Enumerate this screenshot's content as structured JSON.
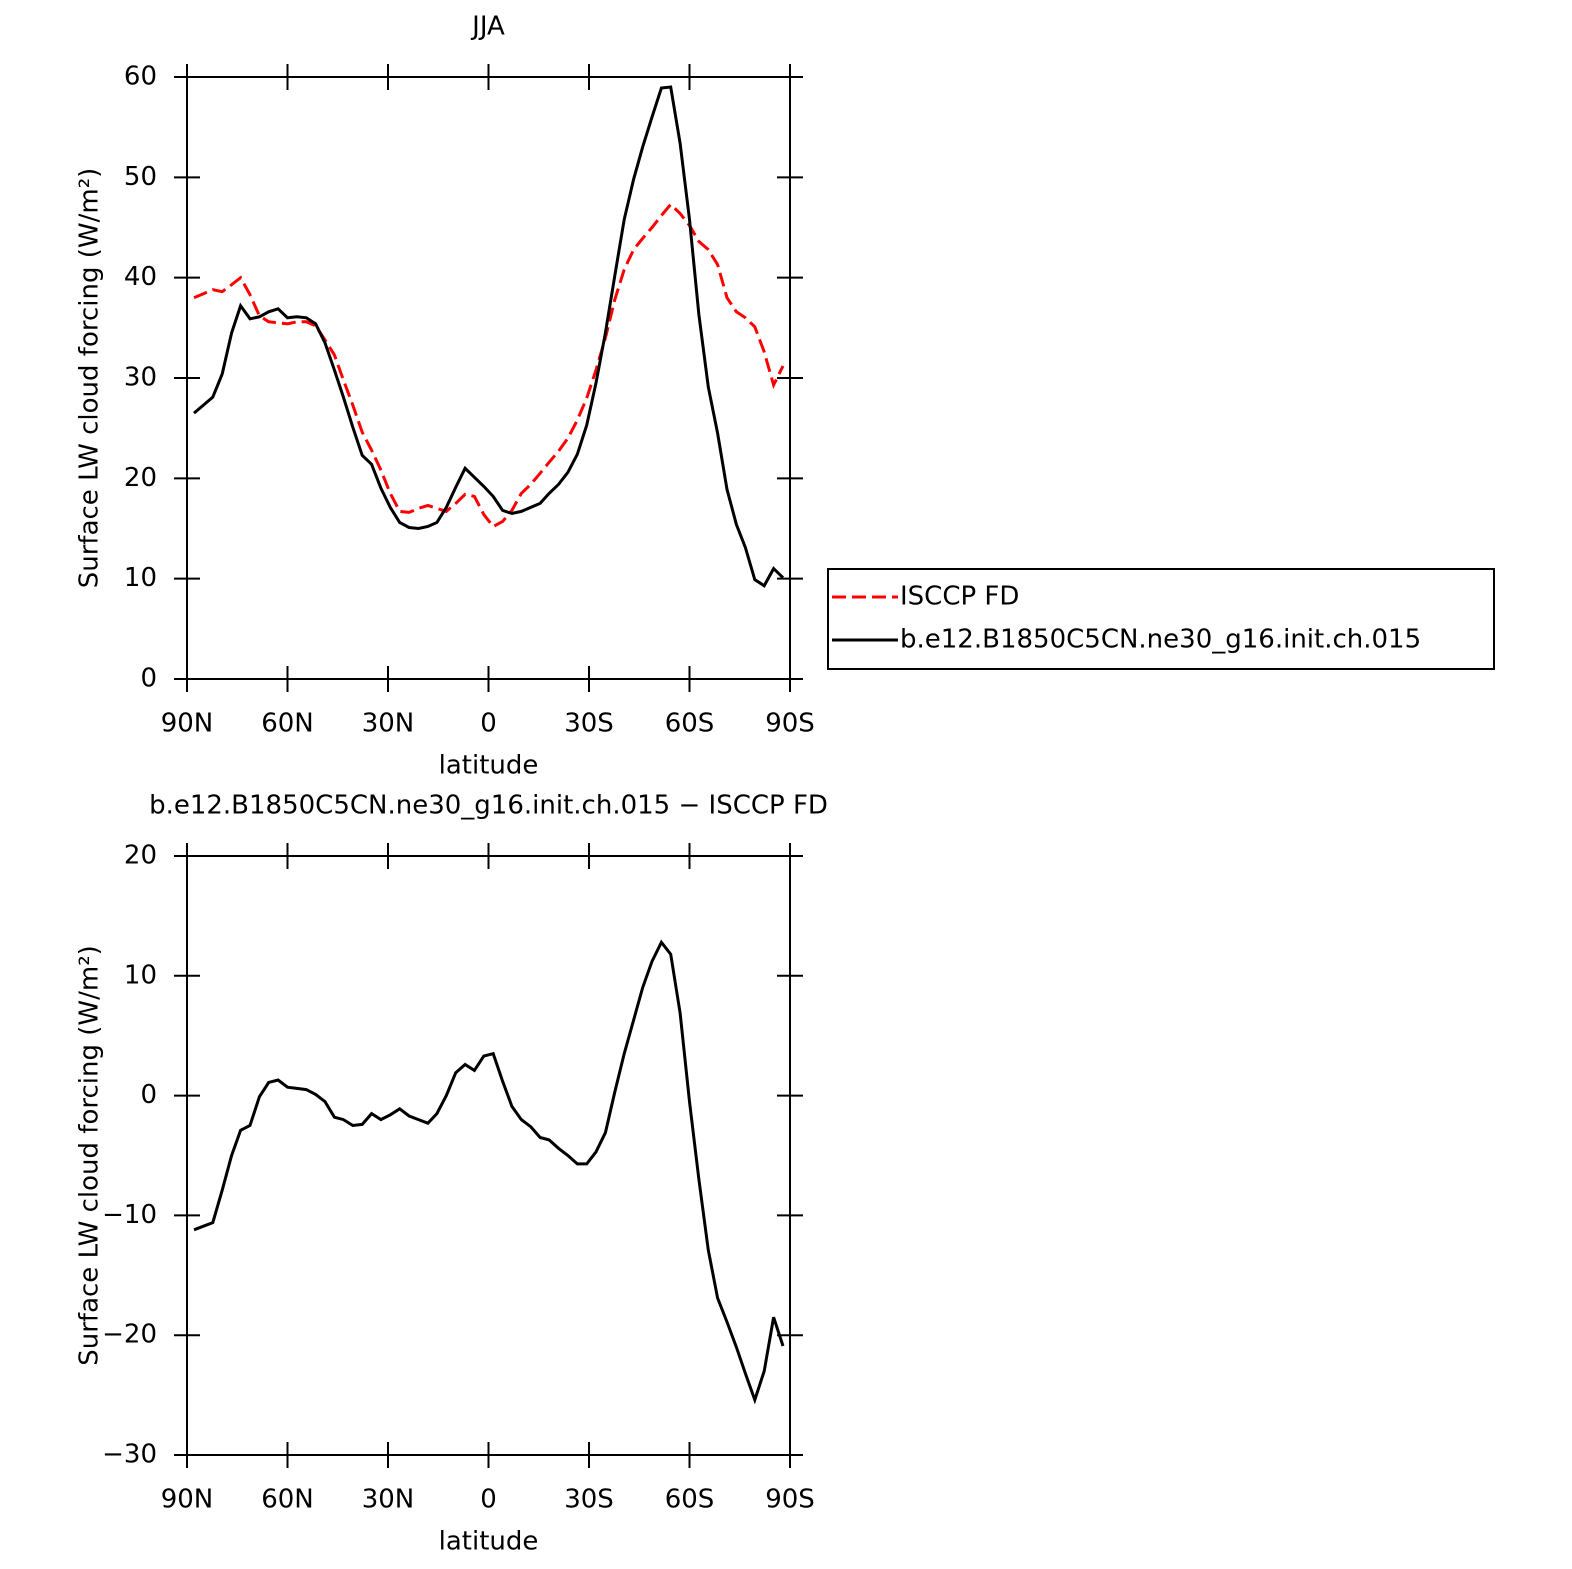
{
  "chart_data": [
    {
      "type": "line",
      "title": "JJA",
      "x_label": "latitude",
      "y_label": "Surface LW cloud forcing (W/m²)",
      "x": [
        87.9,
        85.1,
        82.3,
        79.5,
        76.7,
        74,
        71.2,
        68.4,
        65.6,
        62.8,
        60,
        57.2,
        54.4,
        51.6,
        48.8,
        46,
        43.3,
        40.5,
        37.7,
        34.9,
        32.1,
        29.3,
        26.5,
        23.7,
        20.9,
        18.1,
        15.4,
        12.6,
        9.8,
        7,
        4.2,
        1.4,
        -1.4,
        -4.2,
        -7,
        -9.8,
        -12.6,
        -15.4,
        -18.1,
        -20.9,
        -23.7,
        -26.5,
        -29.3,
        -32.1,
        -34.9,
        -37.7,
        -40.5,
        -43.3,
        -46,
        -48.8,
        -51.6,
        -54.4,
        -57.2,
        -60,
        -62.8,
        -65.6,
        -68.4,
        -71.2,
        -74,
        -76.7,
        -79.5,
        -82.3,
        -85.1,
        -87.9
      ],
      "series": [
        {
          "name": "ISCCP FD",
          "color": "#ff0000",
          "line_style": "dashed",
          "values": [
            38.0,
            38.4,
            38.8,
            38.6,
            39.3,
            40.0,
            38.3,
            36.2,
            35.6,
            35.5,
            35.4,
            35.6,
            35.6,
            35.2,
            33.8,
            32.3,
            29.8,
            27.3,
            24.6,
            22.8,
            20.8,
            18.5,
            16.7,
            16.6,
            17.0,
            17.3,
            17.0,
            16.7,
            17.5,
            18.4,
            18.2,
            16.4,
            15.2,
            15.7,
            16.8,
            18.5,
            19.4,
            20.5,
            21.6,
            22.7,
            24.0,
            25.8,
            28.0,
            30.8,
            34.0,
            37.8,
            40.8,
            42.8,
            43.9,
            45.0,
            46.2,
            47.3,
            46.4,
            45.2,
            43.6,
            42.8,
            41.3,
            38.0,
            36.6,
            36.0,
            35.1,
            32.6,
            29.3,
            31.2
          ]
        },
        {
          "name": "b.e12.B1850C5CN.ne30_g16.init.ch.015",
          "color": "#000000",
          "line_style": "solid",
          "values": [
            26.5,
            27.3,
            28.1,
            30.4,
            34.5,
            37.2,
            35.9,
            36.1,
            36.6,
            36.9,
            36.0,
            36.1,
            36.0,
            35.4,
            33.5,
            30.8,
            28.1,
            25.1,
            22.3,
            21.4,
            19.0,
            17.1,
            15.6,
            15.1,
            15.0,
            15.2,
            15.6,
            17.1,
            19.1,
            21.0,
            20.1,
            19.2,
            18.2,
            16.8,
            16.5,
            16.7,
            17.1,
            17.5,
            18.5,
            19.4,
            20.6,
            22.4,
            25.3,
            29.5,
            34.5,
            40.2,
            45.8,
            49.8,
            53.0,
            56.0,
            58.9,
            59.0,
            53.4,
            45.8,
            36.3,
            29.1,
            24.5,
            18.9,
            15.4,
            13.1,
            9.9,
            9.3,
            11.0,
            10.1
          ]
        }
      ],
      "xlim": [
        90,
        -90
      ],
      "xticks": [
        {
          "value": 90,
          "label": "90N"
        },
        {
          "value": 60,
          "label": "60N"
        },
        {
          "value": 30,
          "label": "30N"
        },
        0,
        {
          "value": -30,
          "label": "30S"
        },
        {
          "value": -60,
          "label": "60S"
        },
        {
          "value": -90,
          "label": "90S"
        }
      ],
      "ylim": [
        0,
        60
      ],
      "yticks": [
        0,
        10,
        20,
        30,
        40,
        50,
        60
      ],
      "legend": "outside-right"
    },
    {
      "type": "line",
      "title": "b.e12.B1850C5CN.ne30_g16.init.ch.015 − ISCCP FD",
      "x_label": "latitude",
      "y_label": "Surface LW cloud forcing (W/m²)",
      "x": [
        87.9,
        85.1,
        82.3,
        79.5,
        76.7,
        74,
        71.2,
        68.4,
        65.6,
        62.8,
        60,
        57.2,
        54.4,
        51.6,
        48.8,
        46,
        43.3,
        40.5,
        37.7,
        34.9,
        32.1,
        29.3,
        26.5,
        23.7,
        20.9,
        18.1,
        15.4,
        12.6,
        9.8,
        7,
        4.2,
        1.4,
        -1.4,
        -4.2,
        -7,
        -9.8,
        -12.6,
        -15.4,
        -18.1,
        -20.9,
        -23.7,
        -26.5,
        -29.3,
        -32.1,
        -34.9,
        -37.7,
        -40.5,
        -43.3,
        -46,
        -48.8,
        -51.6,
        -54.4,
        -57.2,
        -60,
        -62.8,
        -65.6,
        -68.4,
        -71.2,
        -74,
        -76.7,
        -79.5,
        -82.3,
        -85.1,
        -87.9
      ],
      "series": [
        {
          "color": "#000000",
          "line_style": "solid",
          "values": [
            -11.2,
            -10.9,
            -10.6,
            -7.9,
            -5.0,
            -2.9,
            -2.5,
            -0.1,
            1.1,
            1.3,
            0.7,
            0.6,
            0.5,
            0.1,
            -0.5,
            -1.8,
            -2.0,
            -2.5,
            -2.4,
            -1.5,
            -2.0,
            -1.6,
            -1.1,
            -1.7,
            -2.0,
            -2.3,
            -1.5,
            0,
            1.9,
            2.6,
            2.1,
            3.3,
            3.5,
            1.2,
            -0.9,
            -2.0,
            -2.6,
            -3.5,
            -3.7,
            -4.4,
            -5.0,
            -5.7,
            -5.7,
            -4.7,
            -3.1,
            0.3,
            3.5,
            6.3,
            9.0,
            11.2,
            12.8,
            11.8,
            6.9,
            -0.5,
            -7.0,
            -12.9,
            -16.9,
            -18.9,
            -21.0,
            -23.2,
            -25.4,
            -23.0,
            -18.5,
            -20.9
          ]
        }
      ],
      "xlim": [
        90,
        -90
      ],
      "xticks": [
        {
          "value": 90,
          "label": "90N"
        },
        {
          "value": 60,
          "label": "60N"
        },
        {
          "value": 30,
          "label": "30N"
        },
        0,
        {
          "value": -30,
          "label": "30S"
        },
        {
          "value": -60,
          "label": "60S"
        },
        {
          "value": -90,
          "label": "90S"
        }
      ],
      "ylim": [
        -30,
        20
      ],
      "yticks": [
        {
          "value": -30,
          "label": "−30"
        },
        {
          "value": -20,
          "label": "−20"
        },
        {
          "value": -10,
          "label": "−10"
        },
        0,
        10,
        20
      ]
    }
  ]
}
